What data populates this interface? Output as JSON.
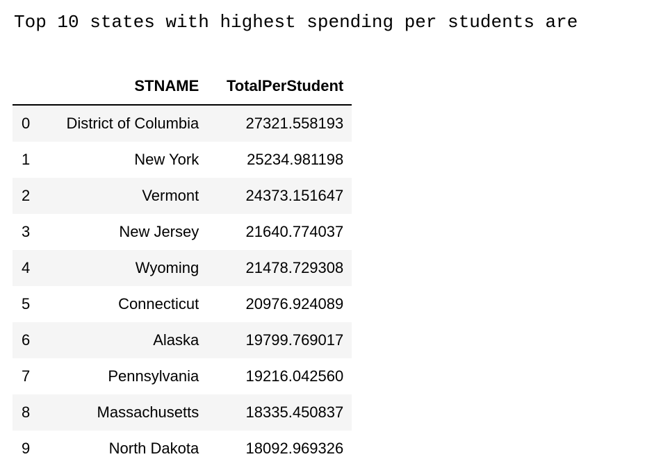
{
  "output_text": "Top 10 states with highest spending per students are",
  "table": {
    "columns": [
      "",
      "STNAME",
      "TotalPerStudent"
    ],
    "rows": [
      {
        "index": "0",
        "stname": "District of Columbia",
        "total": "27321.558193"
      },
      {
        "index": "1",
        "stname": "New York",
        "total": "25234.981198"
      },
      {
        "index": "2",
        "stname": "Vermont",
        "total": "24373.151647"
      },
      {
        "index": "3",
        "stname": "New Jersey",
        "total": "21640.774037"
      },
      {
        "index": "4",
        "stname": "Wyoming",
        "total": "21478.729308"
      },
      {
        "index": "5",
        "stname": "Connecticut",
        "total": "20976.924089"
      },
      {
        "index": "6",
        "stname": "Alaska",
        "total": "19799.769017"
      },
      {
        "index": "7",
        "stname": "Pennsylvania",
        "total": "19216.042560"
      },
      {
        "index": "8",
        "stname": "Massachusetts",
        "total": "18335.450837"
      },
      {
        "index": "9",
        "stname": "North Dakota",
        "total": "18092.969326"
      }
    ]
  },
  "colors": {
    "stripe": "#f5f5f5",
    "text": "#000000",
    "background": "#ffffff"
  }
}
